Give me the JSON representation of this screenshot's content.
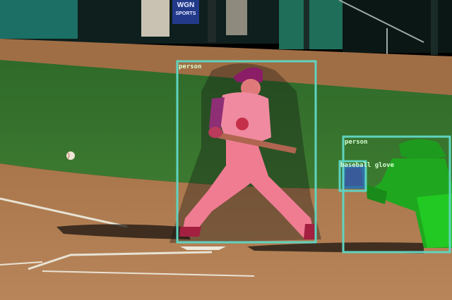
{
  "colors": {
    "box": "#5fd3c0",
    "label_text": "#d6ffd0",
    "person_batter_mask": "#ff5a78",
    "person_catcher_mask": "#1fc21f",
    "glove_mask": "#2b6fd6"
  },
  "detections": [
    {
      "id": "batter",
      "label": "person",
      "mask": "person_batter_mask"
    },
    {
      "id": "catcher",
      "label": "person",
      "mask": "person_catcher_mask"
    },
    {
      "id": "glove",
      "label": "baseball glove",
      "mask": "glove_mask"
    }
  ],
  "background": {
    "sign_text_1": "WGN",
    "sign_text_2": "SPORTS"
  }
}
